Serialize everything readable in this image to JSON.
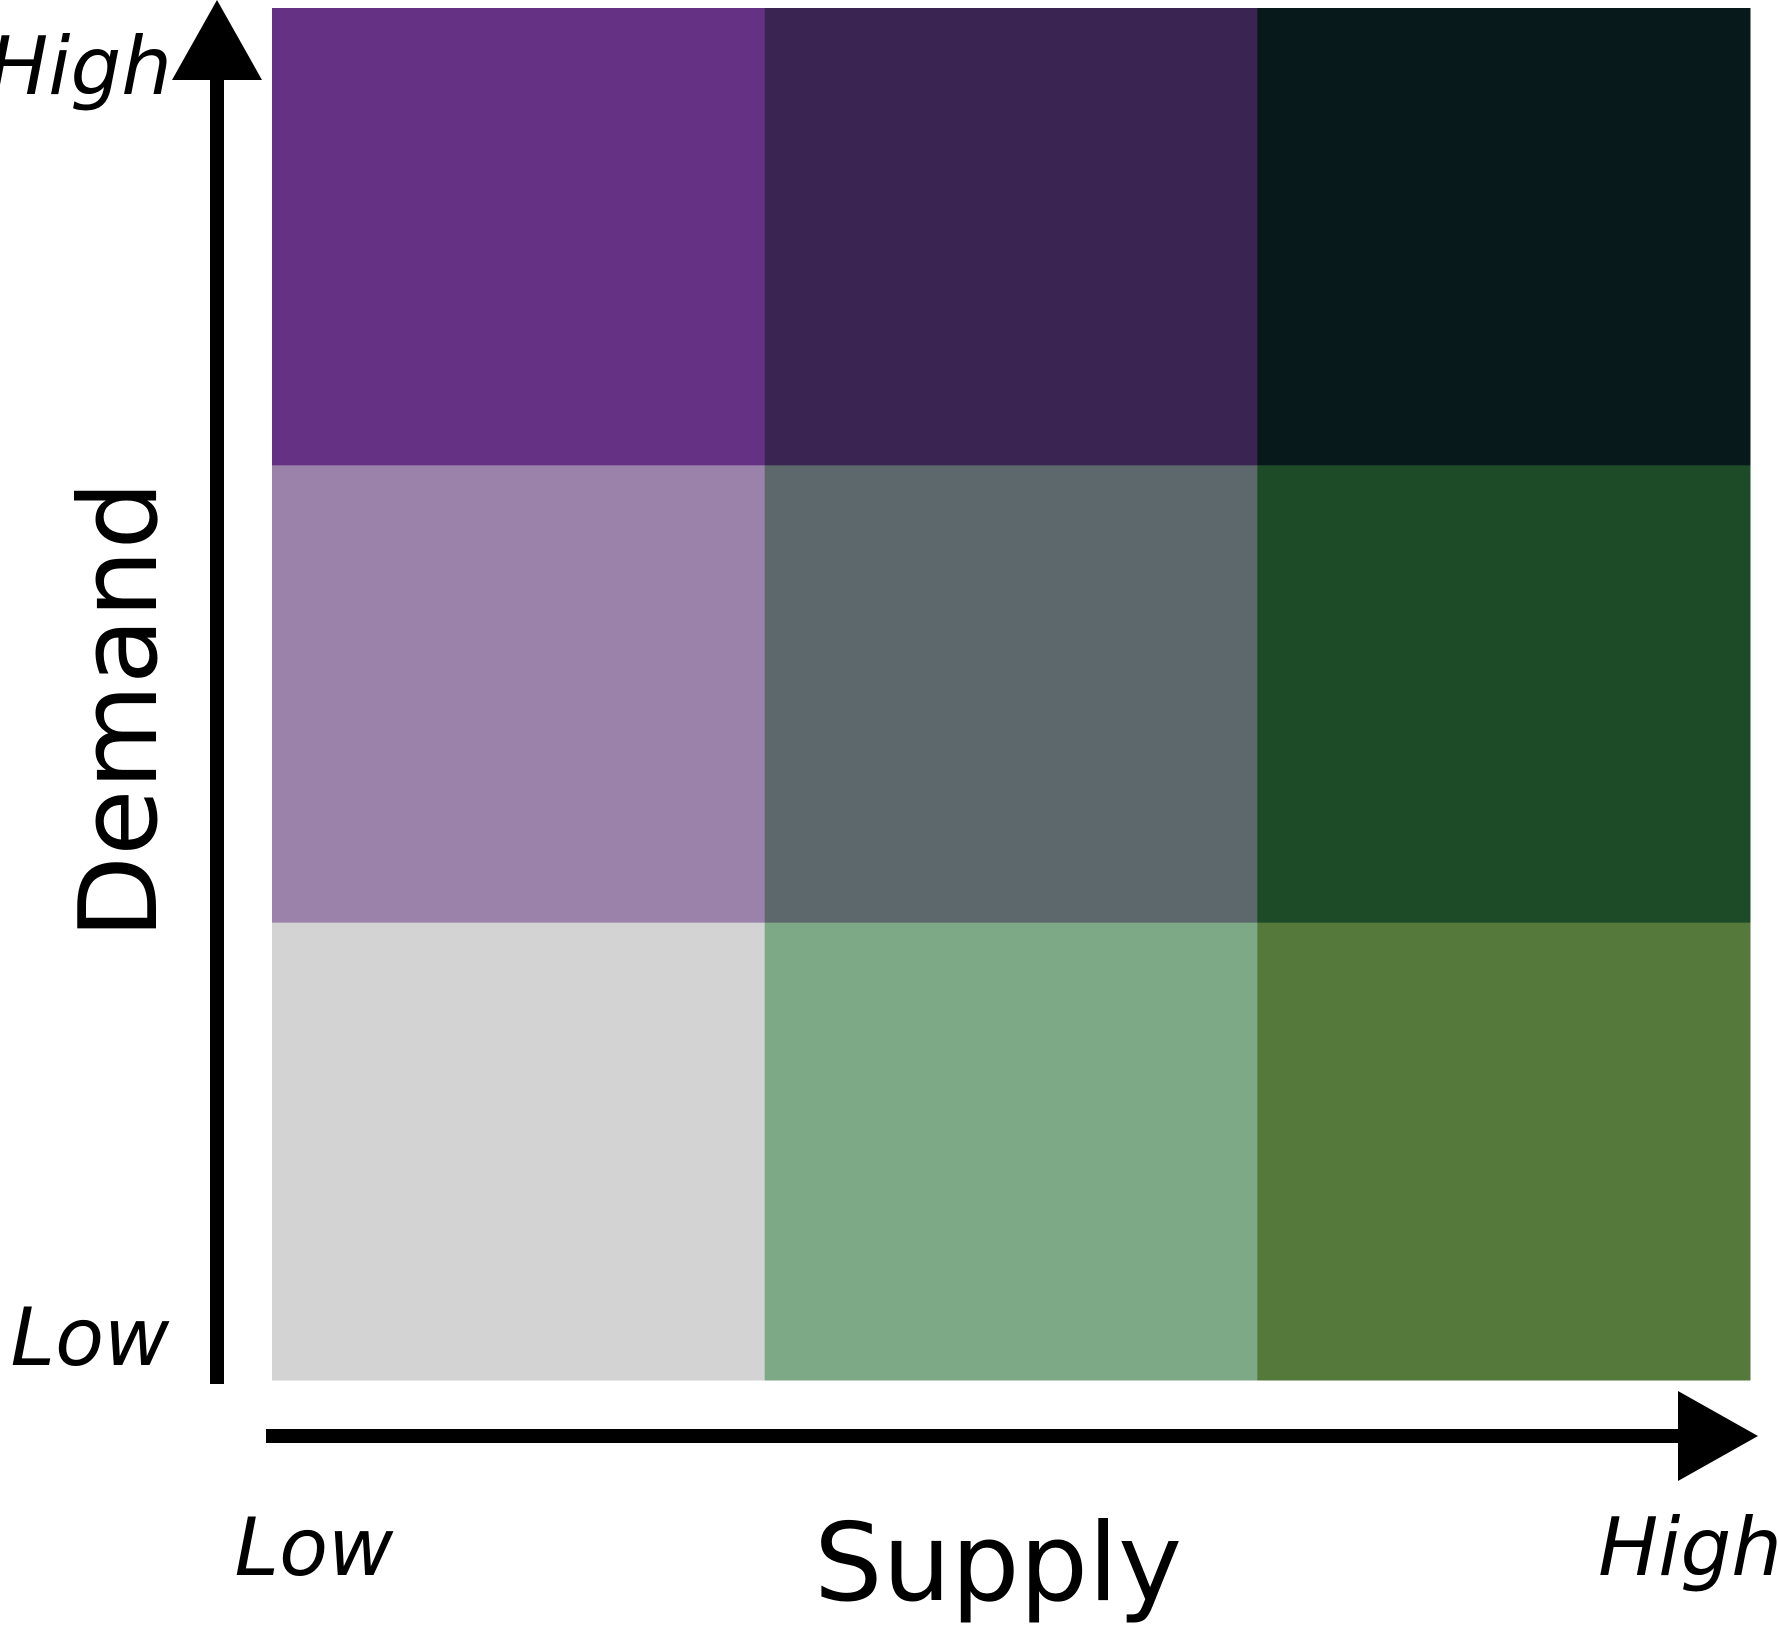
{
  "legend": {
    "grid": {
      "rows": 3,
      "cols": 3,
      "colors": [
        [
          "#653184",
          "#3a2452",
          "#08191c"
        ],
        [
          "#9b82aa",
          "#5d686d",
          "#1e4b27"
        ],
        [
          "#d3d3d3",
          "#7ea987",
          "#54793a"
        ]
      ]
    },
    "x_axis": {
      "title": "Supply",
      "low_label": "Low",
      "high_label": "High"
    },
    "y_axis": {
      "title": "Demand",
      "low_label": "Low",
      "high_label": "High"
    }
  }
}
